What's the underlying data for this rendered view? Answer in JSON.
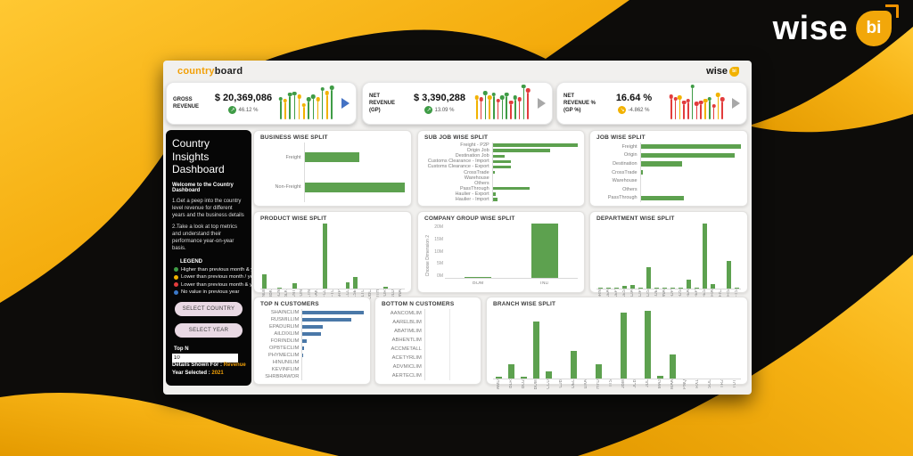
{
  "page": {
    "brand": {
      "wise": "wise",
      "bi": "bi"
    }
  },
  "colors": {
    "gold": "#f2a70a",
    "accent_orange": "#f2a007",
    "bar_green": "#5da14f",
    "bar_blue": "#4a78a8",
    "dot_green": "#3f9c46",
    "dot_yellow": "#f2b200",
    "dot_red": "#e23c3c",
    "dot_blue": "#3b78c9"
  },
  "dashboard": {
    "header": {
      "title_country": "country",
      "title_board": "board",
      "logo_wise": "wise",
      "logo_bi": "bi"
    },
    "kpis": [
      {
        "id": "gross-revenue",
        "label": "GROSS REVENUE",
        "value": "$ 20,369,086",
        "delta": "46.12 %",
        "delta_direction": "up",
        "badge_color": "#3f9c46",
        "arrow_color": "#4472c4",
        "points": [
          {
            "c": "#3f9c46",
            "h": 58
          },
          {
            "c": "#f2b200",
            "h": 52
          },
          {
            "c": "#3f9c46",
            "h": 72
          },
          {
            "c": "#3f9c46",
            "h": 74
          },
          {
            "c": "#f2b200",
            "h": 64
          },
          {
            "c": "#f2b200",
            "h": 38
          },
          {
            "c": "#3f9c46",
            "h": 56
          },
          {
            "c": "#3f9c46",
            "h": 64
          },
          {
            "c": "#f2b200",
            "h": 56
          },
          {
            "c": "#3f9c46",
            "h": 88
          },
          {
            "c": "#f2b200",
            "h": 76
          },
          {
            "c": "#3f9c46",
            "h": 92
          }
        ]
      },
      {
        "id": "net-revenue-gp",
        "label": "NET REVENUE (GP)",
        "value": "$ 3,390,288",
        "delta": "13.09 %",
        "delta_direction": "up",
        "badge_color": "#3f9c46",
        "arrow_color": "#a8a8a8",
        "points": [
          {
            "c": "#f2b200",
            "h": 62
          },
          {
            "c": "#e23c3c",
            "h": 56
          },
          {
            "c": "#3f9c46",
            "h": 76
          },
          {
            "c": "#f2b200",
            "h": 62
          },
          {
            "c": "#3f9c46",
            "h": 72
          },
          {
            "c": "#e23c3c",
            "h": 52
          },
          {
            "c": "#3f9c46",
            "h": 62
          },
          {
            "c": "#3f9c46",
            "h": 72
          },
          {
            "c": "#e23c3c",
            "h": 46
          },
          {
            "c": "#3f9c46",
            "h": 62
          },
          {
            "c": "#e23c3c",
            "h": 56
          },
          {
            "c": "#3f9c46",
            "h": 96
          },
          {
            "c": "#e23c3c",
            "h": 84
          }
        ]
      },
      {
        "id": "net-revenue-gp-pct",
        "label": "NET REVENUE % (GP %)",
        "value": "16.64 %",
        "delta": "-4.862 %",
        "delta_direction": "down",
        "badge_color": "#f2b200",
        "arrow_color": "#a8a8a8",
        "points": [
          {
            "c": "#e23c3c",
            "h": 64
          },
          {
            "c": "#e23c3c",
            "h": 58
          },
          {
            "c": "#f2b200",
            "h": 62
          },
          {
            "c": "#e23c3c",
            "h": 46
          },
          {
            "c": "#e23c3c",
            "h": 52
          },
          {
            "c": "#3f9c46",
            "h": 96
          },
          {
            "c": "#e23c3c",
            "h": 42
          },
          {
            "c": "#e23c3c",
            "h": 46
          },
          {
            "c": "#f2b200",
            "h": 52
          },
          {
            "c": "#3f9c46",
            "h": 58
          },
          {
            "c": "#e23c3c",
            "h": 36
          },
          {
            "c": "#f2b200",
            "h": 70
          },
          {
            "c": "#e23c3c",
            "h": 56
          }
        ]
      }
    ],
    "sidebar": {
      "title": "Country Insights Dashboard",
      "welcome": "Welcome to the Country Dashboard",
      "para1": "1.Get a peep into the country level revenue for different years and the business details",
      "para2": "2.Take a look at top metrics and understand their performance year-on-year basis.",
      "legend_title": "LEGEND",
      "legend": [
        {
          "color": "#3f9c46",
          "text": "Higher than previous month & year"
        },
        {
          "color": "#f2b200",
          "text": "Lower than previous month / year"
        },
        {
          "color": "#e23c3c",
          "text": "Lower than previous month & year"
        },
        {
          "color": "#3b78c9",
          "text": "No value in previous year"
        }
      ],
      "select_country_label": "SELECT COUNTRY",
      "select_year_label": "SELECT YEAR",
      "topn_label": "Top N",
      "topn_value": "10",
      "details_label": "Details Shown For :",
      "details_value": "Revenue",
      "year_label": "Year Selected :",
      "year_value": "2021"
    }
  },
  "chart_data": [
    {
      "id": "business",
      "type": "bar",
      "orientation": "horizontal",
      "title": "BUSINESS WISE SPLIT",
      "color": "#5da14f",
      "units": "percent-of-max",
      "categories": [
        "Freight",
        "Non-Freight"
      ],
      "values": [
        55,
        100
      ]
    },
    {
      "id": "subjob",
      "type": "bar",
      "orientation": "horizontal",
      "title": "SUB JOB WISE SPLIT",
      "color": "#5da14f",
      "units": "percent-of-max",
      "categories": [
        "Freight - P2P",
        "Origin Job",
        "Destination Job",
        "Customs Clearance - Import",
        "Customs Clearance - Export",
        "CrossTrade",
        "Warehouse",
        "Others",
        "PassThrough",
        "Haulier - Export",
        "Haulier - Import"
      ],
      "values": [
        100,
        67,
        14,
        21,
        21,
        2,
        0,
        0,
        43,
        4,
        6
      ]
    },
    {
      "id": "job",
      "type": "bar",
      "orientation": "horizontal",
      "title": "JOB WISE SPLIT",
      "color": "#5da14f",
      "units": "percent-of-max",
      "categories": [
        "Freight",
        "Origin",
        "Destination",
        "CrossTrade",
        "Warehouse",
        "Others",
        "PassThrough"
      ],
      "values": [
        100,
        94,
        41,
        2,
        0,
        0,
        43
      ]
    },
    {
      "id": "product",
      "type": "bar",
      "orientation": "vertical",
      "title": "PRODUCT WISE SPLIT",
      "color": "#5da14f",
      "units": "percent-of-max",
      "categories": [
        "Null",
        "BBK",
        "BCN",
        "BLK",
        "CNT",
        "CON",
        "CTN",
        "FAK",
        "FCL",
        "FTL",
        "GRP",
        "LCL",
        "LSE",
        "LTL",
        "OBC",
        "OTH",
        "ROR",
        "ULD",
        "UNA"
      ],
      "values": [
        22,
        0,
        2,
        0,
        8,
        0,
        0,
        0,
        100,
        0,
        0,
        9,
        18,
        0,
        0,
        0,
        3,
        0,
        0
      ]
    },
    {
      "id": "companygroup",
      "type": "bar",
      "orientation": "vertical",
      "title": "COMPANY GROUP WISE SPLIT",
      "color": "#5da14f",
      "units": "M",
      "ylim": [
        0,
        20
      ],
      "y_ticks": [
        "0M",
        "5M",
        "10M",
        "15M",
        "20M"
      ],
      "y_axis_label": "Choose Dimension 2",
      "categories": [
        "BOM",
        "IND"
      ],
      "values": [
        0.2,
        20
      ]
    },
    {
      "id": "department",
      "type": "bar",
      "orientation": "vertical",
      "title": "DEPARTMENT WISE SPLIT",
      "color": "#5da14f",
      "units": "percent-of-max",
      "categories": [
        "BRN",
        "CEA",
        "CEP",
        "CES",
        "CIA",
        "CIP",
        "CIS",
        "COE",
        "DNA",
        "FDP",
        "FDS",
        "FEA",
        "FEP",
        "FES",
        "FIA",
        "FIC",
        "FIS",
        "FTS"
      ],
      "values": [
        1,
        1,
        2,
        4,
        5,
        1,
        33,
        2,
        2,
        1,
        1,
        14,
        1,
        100,
        7,
        0,
        42,
        1
      ]
    },
    {
      "id": "topn",
      "type": "bar",
      "orientation": "horizontal",
      "title": "TOP N CUSTOMERS",
      "color": "#4a78a8",
      "units": "percent-of-max",
      "categories": [
        "SHAINCLIM",
        "RUSMILLIM",
        "EPADURLIM",
        "AILDIXLIM",
        "FORINDLIM",
        "OPBTECLIM",
        "PHYMECLIM",
        "HINUNILIM",
        "KEVINFLIM",
        "SHRBRAWOR"
      ],
      "values": [
        100,
        80,
        33,
        30,
        6,
        2,
        1,
        0,
        0,
        0
      ]
    },
    {
      "id": "bottomn",
      "type": "bar",
      "orientation": "horizontal",
      "title": "BOTTOM N CUSTOMERS",
      "color": "#4a78a8",
      "units": "percent-of-max",
      "categories": [
        "AANCOMLIM",
        "AARELBLIM",
        "ABATIMLIM",
        "ABHENTLIM",
        "ACCMETALL",
        "ACETYRLIM",
        "ADVMICLIM",
        "AERTECLIM"
      ],
      "values": [
        0,
        0,
        0,
        0,
        0,
        0,
        0,
        0
      ]
    },
    {
      "id": "branch",
      "type": "bar",
      "orientation": "vertical",
      "title": "BRANCH WISE SPLIT",
      "color": "#5da14f",
      "units": "percent-of-max",
      "categories": [
        "AMD",
        "BLR",
        "BO2",
        "BOM",
        "CCU",
        "CJB",
        "DEL",
        "DXA",
        "HYD",
        "ITS",
        "JBM",
        "JCB",
        "JDL",
        "MA3",
        "MAA",
        "PNQ",
        "RX1",
        "SOL",
        "TR2",
        "TUT"
      ],
      "values": [
        3,
        20,
        2,
        82,
        10,
        0,
        40,
        0,
        21,
        0,
        95,
        0,
        98,
        4,
        35,
        0,
        0,
        0,
        0,
        0
      ]
    }
  ]
}
